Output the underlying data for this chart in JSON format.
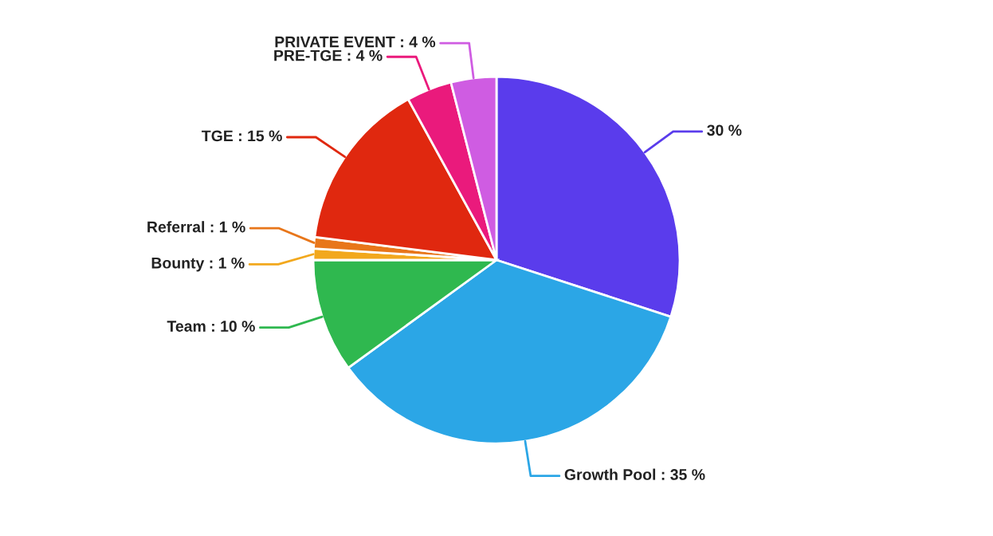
{
  "chart_data": {
    "type": "pie",
    "categories": [
      null,
      "Growth Pool",
      "Team",
      "Bounty",
      "Referral",
      "TGE",
      "PRE-TGE",
      "PRIVATE EVENT"
    ],
    "values": [
      30,
      35,
      10,
      1,
      1,
      15,
      4,
      4
    ],
    "value_labels": [
      "30 %",
      ": 35 %",
      ": 10 %",
      ": 1 %",
      ": 1 %",
      ": 15 %",
      ": 4 %",
      ": 4 %"
    ],
    "colors": [
      "#5a3cec",
      "#2ba6e6",
      "#2fb84f",
      "#f2a81d",
      "#e8761a",
      "#e0280f",
      "#ea1a7c",
      "#cf5ce2"
    ]
  }
}
